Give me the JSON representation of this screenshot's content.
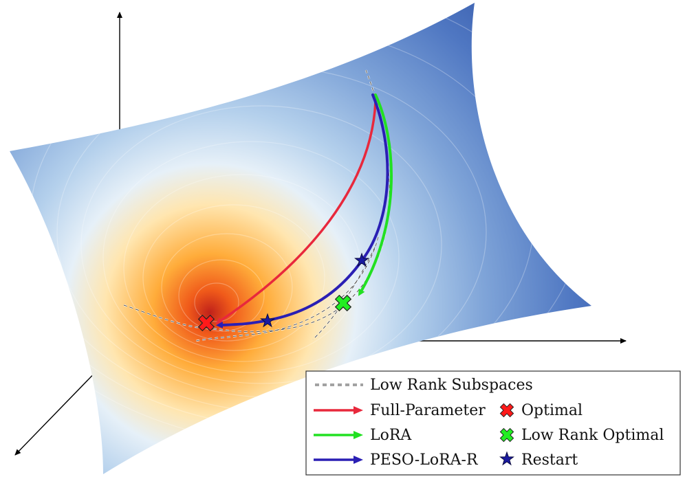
{
  "legend": {
    "subspaces_label": "Low Rank Subspaces",
    "full_parameter_label": "Full-Parameter",
    "lora_label": "LoRA",
    "peso_label": "PESO-LoRA-R",
    "optimal_label": "Optimal",
    "low_rank_optimal_label": "Low Rank Optimal",
    "restart_label": "Restart"
  },
  "colors": {
    "full_parameter": "#e8283c",
    "lora": "#22e022",
    "peso_lora_r": "#2a1fb4",
    "optimal_marker": "#ff1a1a",
    "low_rank_optimal_marker": "#22ee22",
    "restart_marker": "#1a1aa0",
    "surface_outer": "#3a5fb0",
    "surface_mid": "#b8d4ee",
    "surface_minimum": "#ff9a22"
  },
  "icons": {
    "optimal": "cross-mark-icon",
    "low_rank_optimal": "cross-mark-icon",
    "restart": "star-icon",
    "trajectory": "arrow-icon",
    "subspace": "dashed-line-icon"
  }
}
